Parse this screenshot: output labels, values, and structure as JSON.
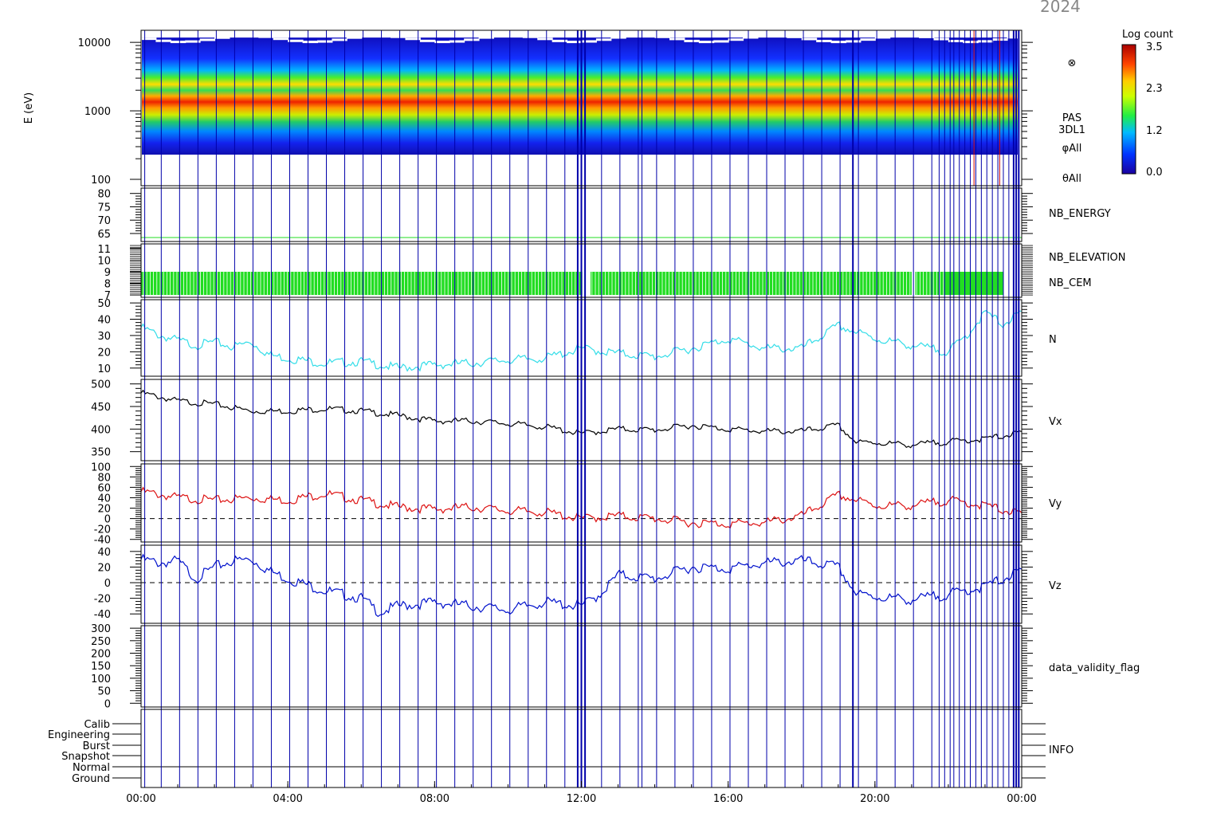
{
  "header": {
    "year_label": "2024"
  },
  "colorbar": {
    "title": "Log count",
    "ticks": [
      "3.5",
      "2.3",
      "1.2",
      "0.0"
    ]
  },
  "time_axis": {
    "ticks": [
      "00:00",
      "04:00",
      "08:00",
      "12:00",
      "16:00",
      "20:00",
      "00:00"
    ],
    "range_hours": [
      0,
      24
    ]
  },
  "colors": {
    "frame": "#000000",
    "blue_lines": "#0000aa",
    "red_lines": "#cc0000",
    "n_series": "#33dde8",
    "vx_series": "#000000",
    "vy_series": "#dd1111",
    "vz_series": "#0011cc",
    "nb_green": "#22dd22",
    "nb_blue": "#1133aa"
  },
  "chart_data": [
    {
      "id": "pas_spectrogram",
      "type": "heatmap",
      "ylabel": "E (eV)",
      "y_scale": "log",
      "ylim": [
        100,
        15000
      ],
      "yticks": [
        "10000",
        "1000",
        "100"
      ],
      "labels": [
        "PAS",
        "3DL1",
        "φAll",
        "θAll"
      ],
      "symbol": "⊗",
      "peak_energy_eV": 1000,
      "range_eV": [
        300,
        10000
      ]
    },
    {
      "id": "nb_energy",
      "type": "line",
      "label": "NB_ENERGY",
      "yticks": [
        "80",
        "75",
        "70",
        "65"
      ],
      "ylim": [
        62,
        82
      ],
      "constant_value": 63.5
    },
    {
      "id": "nb_elevation",
      "type": "bar",
      "labels": [
        "NB_ELEVATION",
        "NB_CEM"
      ],
      "yticks": [
        "11",
        "10",
        "9",
        "8",
        "7"
      ],
      "ylim": [
        6.8,
        11.4
      ],
      "band": [
        7,
        9
      ]
    },
    {
      "id": "density",
      "type": "line",
      "label": "N",
      "yticks": [
        "50",
        "40",
        "30",
        "20",
        "10"
      ],
      "ylim": [
        5,
        52
      ],
      "x": [
        0,
        0.5,
        1,
        1.5,
        2,
        2.5,
        3,
        3.5,
        4,
        5,
        6,
        7,
        8,
        9,
        10,
        11,
        12,
        13,
        14,
        15,
        16,
        17,
        18,
        19,
        20,
        21,
        22,
        22.5,
        23,
        23.5,
        24
      ],
      "values": [
        35,
        30,
        27,
        24,
        26,
        23,
        26,
        18,
        16,
        13,
        14,
        10,
        12,
        13,
        15,
        16,
        22,
        19,
        17,
        22,
        28,
        22,
        22,
        36,
        28,
        24,
        20,
        30,
        44,
        37,
        44
      ]
    },
    {
      "id": "vx",
      "type": "line",
      "label": "Vx",
      "yticks": [
        "500",
        "450",
        "400",
        "350"
      ],
      "ylim": [
        330,
        510
      ],
      "x": [
        0,
        1,
        2,
        3,
        4,
        5,
        6,
        7,
        8,
        9,
        10,
        11,
        12,
        13,
        14,
        15,
        16,
        17,
        18,
        19,
        19.5,
        20,
        21,
        22,
        23,
        24
      ],
      "values": [
        480,
        462,
        455,
        440,
        440,
        445,
        440,
        430,
        418,
        418,
        412,
        405,
        390,
        400,
        398,
        408,
        400,
        395,
        395,
        408,
        370,
        370,
        365,
        372,
        378,
        392
      ]
    },
    {
      "id": "vy",
      "type": "line",
      "label": "Vy",
      "yticks": [
        "100",
        "80",
        "60",
        "40",
        "20",
        "0",
        "-20",
        "-40"
      ],
      "ylim": [
        -45,
        105
      ],
      "x": [
        0,
        1,
        2,
        3,
        4,
        5,
        6,
        7,
        8,
        9,
        10,
        11,
        12,
        13,
        14,
        15,
        16,
        17,
        18,
        19,
        20,
        21,
        22,
        23,
        24
      ],
      "values": [
        52,
        40,
        35,
        40,
        35,
        48,
        35,
        22,
        18,
        22,
        15,
        12,
        0,
        5,
        0,
        -8,
        -10,
        -8,
        5,
        45,
        25,
        25,
        35,
        25,
        8
      ]
    },
    {
      "id": "vz",
      "type": "line",
      "label": "Vz",
      "yticks": [
        "40",
        "20",
        "0",
        "-20",
        "-40"
      ],
      "ylim": [
        -52,
        48
      ],
      "x": [
        0,
        0.5,
        1,
        1.5,
        2,
        2.5,
        3,
        3.5,
        4,
        5,
        6,
        6.5,
        7,
        8,
        9,
        10,
        11,
        12,
        12.5,
        13,
        14,
        15,
        16,
        17,
        18,
        19,
        19.5,
        20,
        21,
        22,
        23,
        24
      ],
      "values": [
        30,
        25,
        28,
        5,
        20,
        28,
        30,
        15,
        5,
        -10,
        -20,
        -38,
        -30,
        -25,
        -30,
        -35,
        -25,
        -30,
        -15,
        10,
        5,
        20,
        18,
        25,
        28,
        20,
        -15,
        -18,
        -22,
        -15,
        -5,
        15
      ]
    },
    {
      "id": "data_validity_flag",
      "type": "line",
      "label": "data_validity_flag",
      "yticks": [
        "300",
        "250",
        "200",
        "150",
        "100",
        "50",
        "0"
      ],
      "ylim": [
        -15,
        310
      ]
    },
    {
      "id": "info",
      "type": "table",
      "label": "INFO",
      "levels": [
        "Calib",
        "Engineering",
        "Burst",
        "Snapshot",
        "Normal",
        "Ground"
      ]
    }
  ]
}
